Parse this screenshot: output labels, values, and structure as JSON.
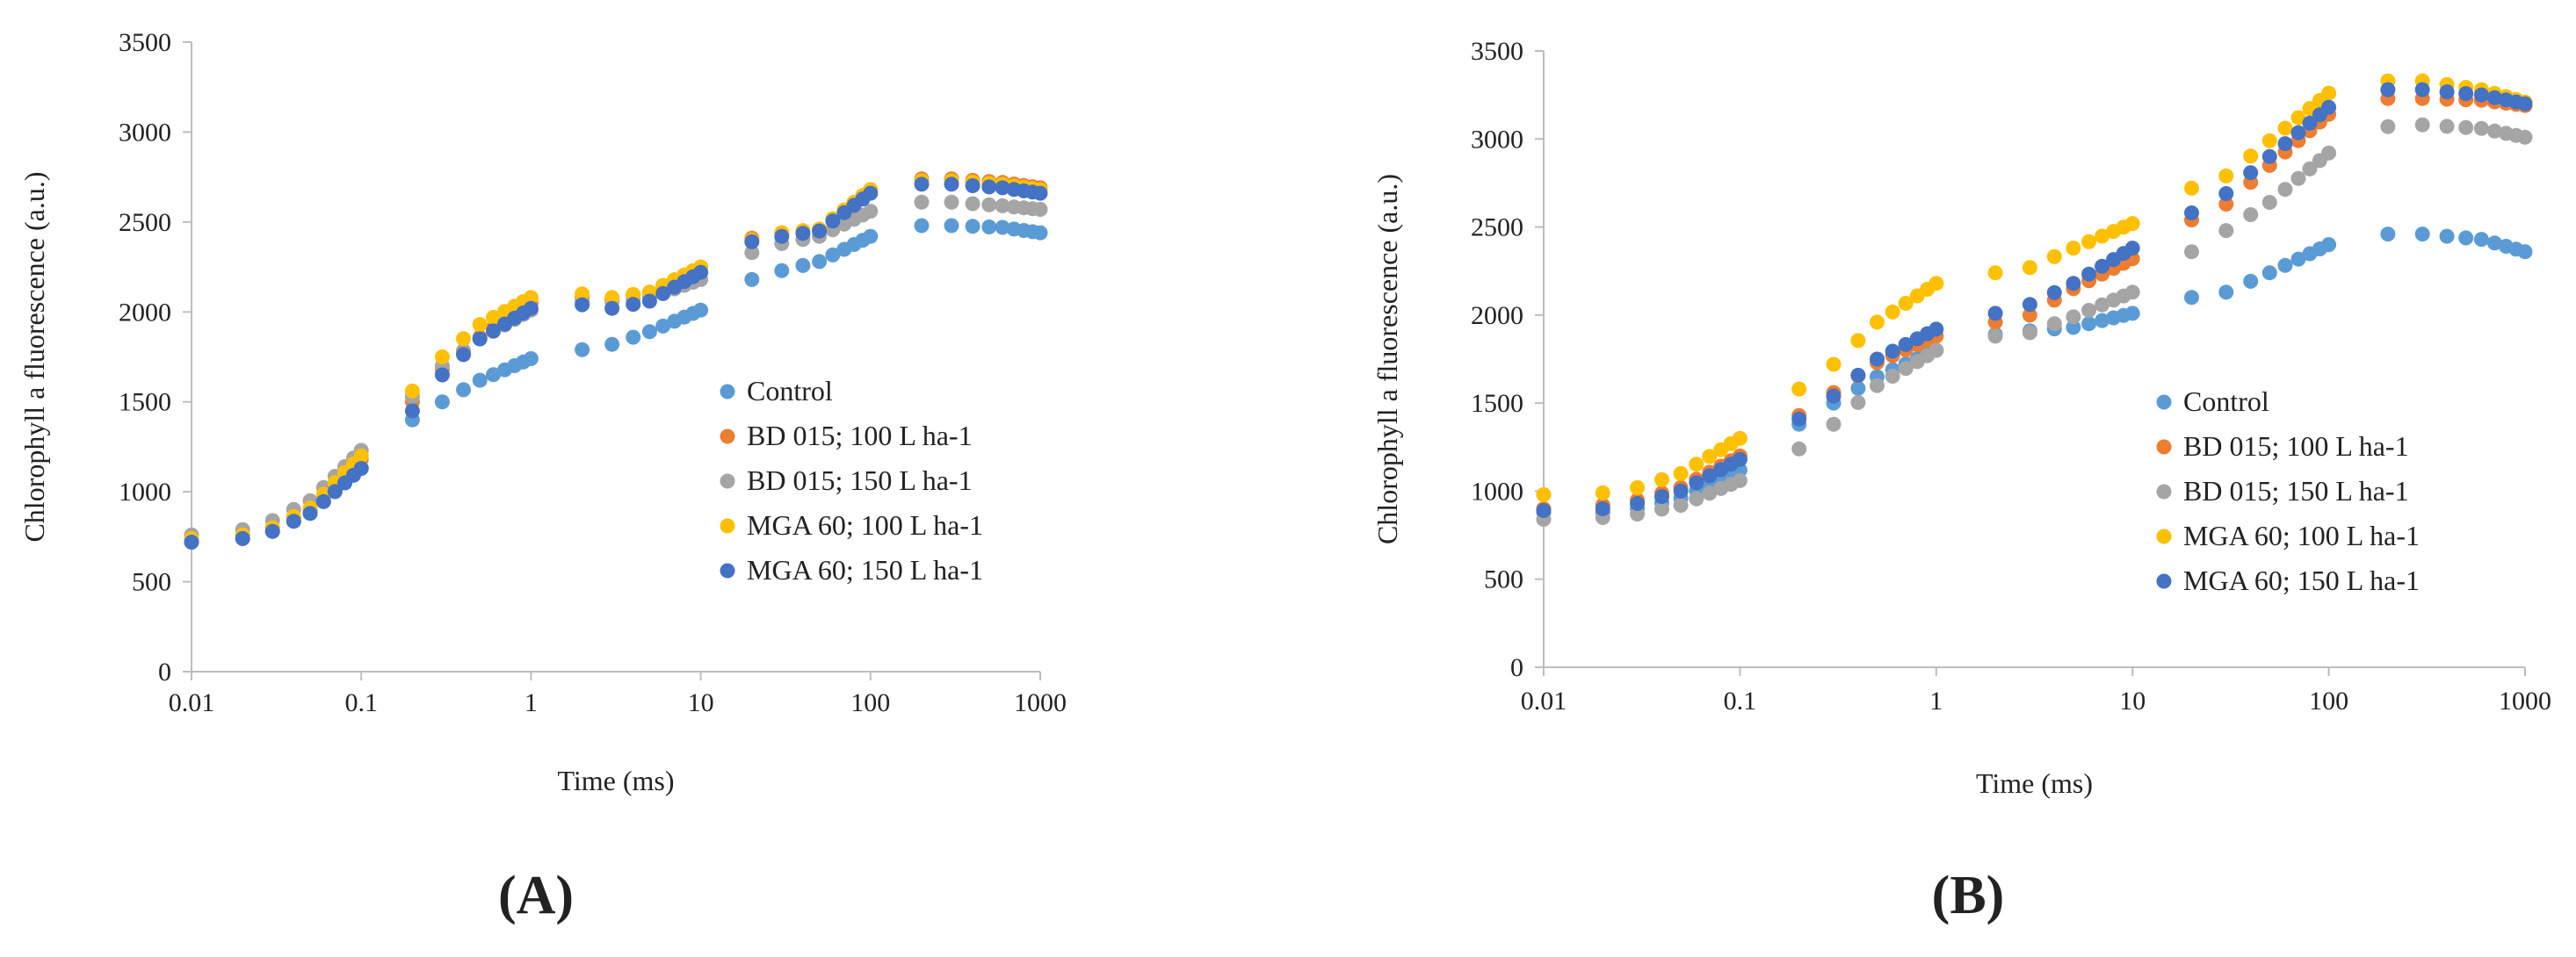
{
  "colors": {
    "control": "#5B9BD5",
    "bd015_100": "#ED7D31",
    "bd015_150": "#A5A5A5",
    "mga60_100": "#FFC000",
    "mga60_150": "#4472C4"
  },
  "chart_data": [
    {
      "type": "scatter",
      "panel_label": "(A)",
      "xlabel": "Time (ms)",
      "ylabel": "Chlorophyll a fluorescence (a.u.)",
      "x_scale": "log",
      "xlim": [
        0.01,
        1000
      ],
      "ylim": [
        0,
        3500
      ],
      "x_ticks": [
        "0.01",
        "0.1",
        "1",
        "10",
        "100",
        "1000"
      ],
      "y_ticks": [
        "0",
        "500",
        "1000",
        "1500",
        "2000",
        "2500",
        "3000",
        "3500"
      ],
      "legend_position": "center-right",
      "series": [
        {
          "name": "Control",
          "color_key": "control",
          "anchors": [
            [
              0.01,
              720
            ],
            [
              0.02,
              740
            ],
            [
              0.03,
              780
            ],
            [
              0.05,
              880
            ],
            [
              0.1,
              1130
            ],
            [
              0.2,
              1400
            ],
            [
              0.3,
              1500
            ],
            [
              0.5,
              1620
            ],
            [
              1,
              1740
            ],
            [
              2,
              1790
            ],
            [
              3,
              1820
            ],
            [
              5,
              1890
            ],
            [
              10,
              2010
            ],
            [
              20,
              2180
            ],
            [
              30,
              2230
            ],
            [
              50,
              2280
            ],
            [
              100,
              2420
            ],
            [
              200,
              2480
            ],
            [
              300,
              2480
            ],
            [
              600,
              2470
            ],
            [
              1000,
              2440
            ]
          ]
        },
        {
          "name": "BD 015; 100 L ha-1",
          "color_key": "bd015_100",
          "anchors": [
            [
              0.01,
              740
            ],
            [
              0.02,
              760
            ],
            [
              0.03,
              800
            ],
            [
              0.05,
              900
            ],
            [
              0.1,
              1180
            ],
            [
              0.2,
              1500
            ],
            [
              0.3,
              1680
            ],
            [
              0.5,
              1860
            ],
            [
              1,
              2050
            ],
            [
              2,
              2080
            ],
            [
              3,
              2070
            ],
            [
              5,
              2110
            ],
            [
              10,
              2250
            ],
            [
              20,
              2410
            ],
            [
              30,
              2440
            ],
            [
              50,
              2460
            ],
            [
              100,
              2680
            ],
            [
              200,
              2740
            ],
            [
              300,
              2740
            ],
            [
              600,
              2720
            ],
            [
              1000,
              2690
            ]
          ]
        },
        {
          "name": "BD 015; 150 L ha-1",
          "color_key": "bd015_150",
          "anchors": [
            [
              0.01,
              760
            ],
            [
              0.02,
              790
            ],
            [
              0.03,
              840
            ],
            [
              0.05,
              950
            ],
            [
              0.1,
              1230
            ],
            [
              0.2,
              1530
            ],
            [
              0.3,
              1700
            ],
            [
              0.5,
              1850
            ],
            [
              1,
              2010
            ],
            [
              2,
              2060
            ],
            [
              3,
              2060
            ],
            [
              5,
              2080
            ],
            [
              10,
              2180
            ],
            [
              20,
              2330
            ],
            [
              30,
              2380
            ],
            [
              50,
              2420
            ],
            [
              100,
              2560
            ],
            [
              200,
              2610
            ],
            [
              300,
              2610
            ],
            [
              600,
              2590
            ],
            [
              1000,
              2570
            ]
          ]
        },
        {
          "name": "MGA 60; 100 L ha-1",
          "color_key": "mga60_100",
          "anchors": [
            [
              0.01,
              740
            ],
            [
              0.02,
              760
            ],
            [
              0.03,
              800
            ],
            [
              0.05,
              910
            ],
            [
              0.1,
              1200
            ],
            [
              0.2,
              1560
            ],
            [
              0.3,
              1750
            ],
            [
              0.5,
              1930
            ],
            [
              1,
              2080
            ],
            [
              2,
              2100
            ],
            [
              3,
              2080
            ],
            [
              5,
              2110
            ],
            [
              10,
              2250
            ],
            [
              20,
              2400
            ],
            [
              30,
              2440
            ],
            [
              50,
              2460
            ],
            [
              100,
              2680
            ],
            [
              200,
              2730
            ],
            [
              300,
              2730
            ],
            [
              600,
              2710
            ],
            [
              1000,
              2680
            ]
          ]
        },
        {
          "name": "MGA 60; 150 L ha-1",
          "color_key": "mga60_150",
          "anchors": [
            [
              0.01,
              720
            ],
            [
              0.02,
              740
            ],
            [
              0.03,
              780
            ],
            [
              0.05,
              880
            ],
            [
              0.1,
              1130
            ],
            [
              0.2,
              1450
            ],
            [
              0.3,
              1650
            ],
            [
              0.5,
              1850
            ],
            [
              1,
              2020
            ],
            [
              2,
              2040
            ],
            [
              3,
              2020
            ],
            [
              5,
              2060
            ],
            [
              10,
              2220
            ],
            [
              20,
              2390
            ],
            [
              30,
              2420
            ],
            [
              50,
              2450
            ],
            [
              100,
              2660
            ],
            [
              200,
              2710
            ],
            [
              300,
              2710
            ],
            [
              600,
              2690
            ],
            [
              1000,
              2660
            ]
          ]
        }
      ]
    },
    {
      "type": "scatter",
      "panel_label": "(B)",
      "xlabel": "Time (ms)",
      "ylabel": "Chlorophyll a fluorescence (a.u.)",
      "x_scale": "log",
      "xlim": [
        0.01,
        1000
      ],
      "ylim": [
        0,
        3500
      ],
      "x_ticks": [
        "0.01",
        "0.1",
        "1",
        "10",
        "100",
        "1000"
      ],
      "y_ticks": [
        "0",
        "500",
        "1000",
        "1500",
        "2000",
        "2500",
        "3000",
        "3500"
      ],
      "legend_position": "center-right",
      "series": [
        {
          "name": "Control",
          "color_key": "control",
          "anchors": [
            [
              0.01,
              880
            ],
            [
              0.02,
              880
            ],
            [
              0.03,
              900
            ],
            [
              0.05,
              960
            ],
            [
              0.1,
              1120
            ],
            [
              0.2,
              1380
            ],
            [
              0.3,
              1500
            ],
            [
              0.5,
              1650
            ],
            [
              1,
              1800
            ],
            [
              2,
              1890
            ],
            [
              3,
              1910
            ],
            [
              5,
              1930
            ],
            [
              10,
              2010
            ],
            [
              20,
              2100
            ],
            [
              30,
              2130
            ],
            [
              50,
              2240
            ],
            [
              100,
              2400
            ],
            [
              200,
              2460
            ],
            [
              300,
              2460
            ],
            [
              600,
              2430
            ],
            [
              1000,
              2360
            ]
          ]
        },
        {
          "name": "BD 015; 100 L ha-1",
          "color_key": "bd015_100",
          "anchors": [
            [
              0.01,
              900
            ],
            [
              0.02,
              920
            ],
            [
              0.03,
              950
            ],
            [
              0.05,
              1020
            ],
            [
              0.1,
              1200
            ],
            [
              0.2,
              1430
            ],
            [
              0.3,
              1560
            ],
            [
              0.5,
              1730
            ],
            [
              1,
              1880
            ],
            [
              2,
              1960
            ],
            [
              3,
              2000
            ],
            [
              5,
              2150
            ],
            [
              10,
              2320
            ],
            [
              20,
              2540
            ],
            [
              30,
              2630
            ],
            [
              50,
              2850
            ],
            [
              100,
              3140
            ],
            [
              200,
              3230
            ],
            [
              300,
              3230
            ],
            [
              600,
              3220
            ],
            [
              1000,
              3190
            ]
          ]
        },
        {
          "name": "BD 015; 150 L ha-1",
          "color_key": "bd015_150",
          "anchors": [
            [
              0.01,
              840
            ],
            [
              0.02,
              850
            ],
            [
              0.03,
              870
            ],
            [
              0.05,
              920
            ],
            [
              0.1,
              1060
            ],
            [
              0.2,
              1240
            ],
            [
              0.3,
              1380
            ],
            [
              0.5,
              1600
            ],
            [
              1,
              1800
            ],
            [
              2,
              1880
            ],
            [
              3,
              1900
            ],
            [
              5,
              1990
            ],
            [
              10,
              2130
            ],
            [
              20,
              2360
            ],
            [
              30,
              2480
            ],
            [
              50,
              2640
            ],
            [
              100,
              2920
            ],
            [
              200,
              3070
            ],
            [
              300,
              3080
            ],
            [
              600,
              3060
            ],
            [
              1000,
              3010
            ]
          ]
        },
        {
          "name": "MGA 60; 100 L ha-1",
          "color_key": "mga60_100",
          "anchors": [
            [
              0.01,
              980
            ],
            [
              0.02,
              990
            ],
            [
              0.03,
              1020
            ],
            [
              0.05,
              1100
            ],
            [
              0.1,
              1300
            ],
            [
              0.2,
              1580
            ],
            [
              0.3,
              1720
            ],
            [
              0.5,
              1960
            ],
            [
              1,
              2180
            ],
            [
              2,
              2240
            ],
            [
              3,
              2270
            ],
            [
              5,
              2380
            ],
            [
              10,
              2520
            ],
            [
              20,
              2720
            ],
            [
              30,
              2790
            ],
            [
              50,
              2990
            ],
            [
              100,
              3260
            ],
            [
              200,
              3330
            ],
            [
              300,
              3330
            ],
            [
              600,
              3280
            ],
            [
              1000,
              3210
            ]
          ]
        },
        {
          "name": "MGA 60; 150 L ha-1",
          "color_key": "mga60_150",
          "anchors": [
            [
              0.01,
              890
            ],
            [
              0.02,
              900
            ],
            [
              0.03,
              930
            ],
            [
              0.05,
              1000
            ],
            [
              0.1,
              1180
            ],
            [
              0.2,
              1410
            ],
            [
              0.3,
              1540
            ],
            [
              0.5,
              1750
            ],
            [
              1,
              1920
            ],
            [
              2,
              2010
            ],
            [
              3,
              2060
            ],
            [
              5,
              2180
            ],
            [
              10,
              2380
            ],
            [
              20,
              2580
            ],
            [
              30,
              2690
            ],
            [
              50,
              2900
            ],
            [
              100,
              3180
            ],
            [
              200,
              3280
            ],
            [
              300,
              3280
            ],
            [
              600,
              3250
            ],
            [
              1000,
              3200
            ]
          ]
        }
      ]
    }
  ]
}
